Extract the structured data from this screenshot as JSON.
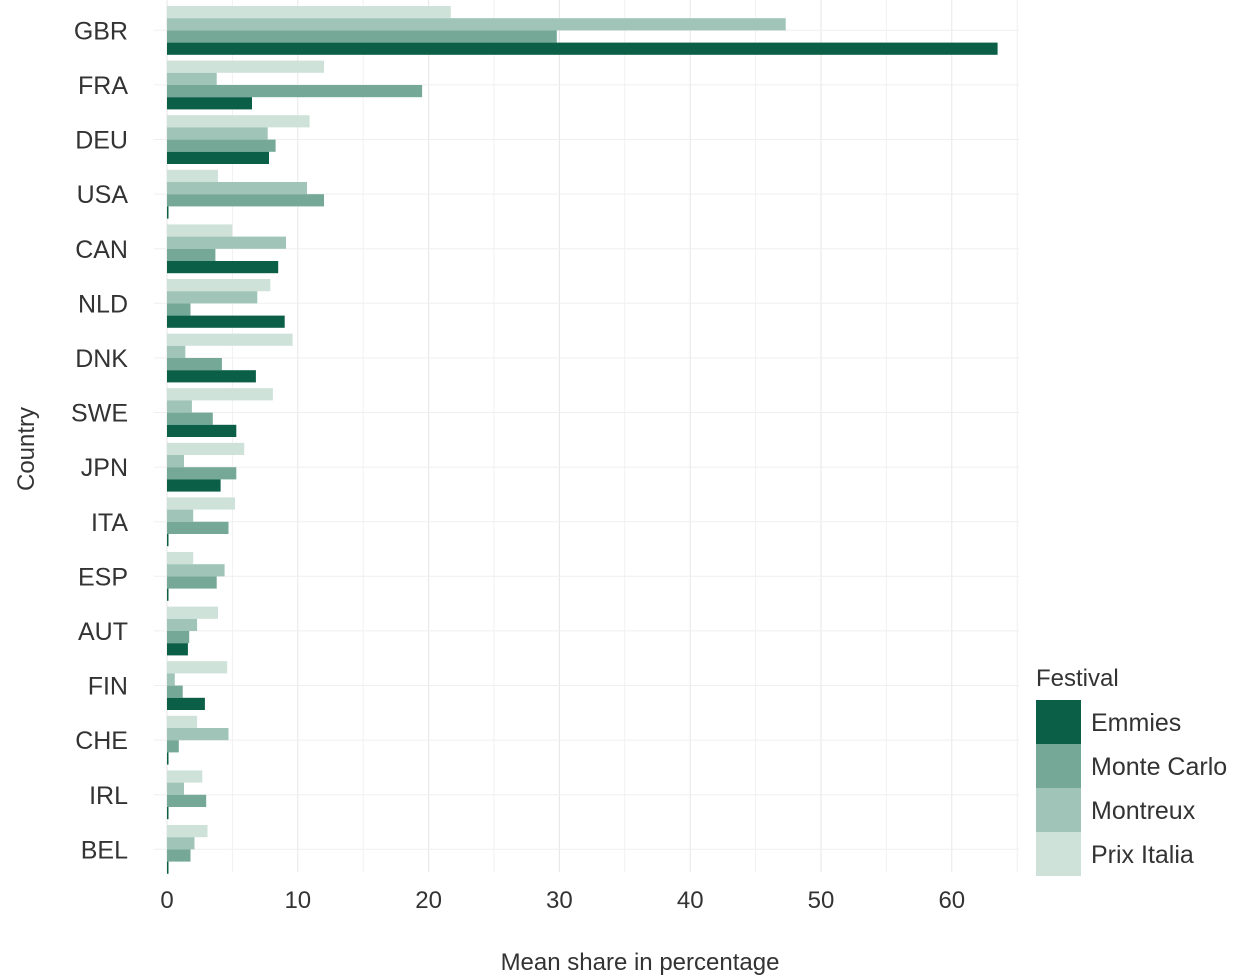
{
  "chart_data": {
    "type": "bar",
    "orientation": "horizontal",
    "title": "",
    "xlabel": "Mean share in percentage",
    "ylabel": "Country",
    "xlim": [
      0,
      65
    ],
    "x_ticks": [
      "0",
      "10",
      "20",
      "30",
      "40",
      "50",
      "60"
    ],
    "grid": true,
    "legend_position": "right-bottom",
    "legend_title": "Festival",
    "categories": [
      "GBR",
      "FRA",
      "DEU",
      "USA",
      "CAN",
      "NLD",
      "DNK",
      "SWE",
      "JPN",
      "ITA",
      "ESP",
      "AUT",
      "FIN",
      "CHE",
      "IRL",
      "BEL"
    ],
    "series": [
      {
        "name": "Prix Italia",
        "color": "#cfe2da",
        "values": [
          21.7,
          12.0,
          10.9,
          3.9,
          5.0,
          7.9,
          9.6,
          8.1,
          5.9,
          5.2,
          2.0,
          3.9,
          4.6,
          2.3,
          2.7,
          3.1
        ]
      },
      {
        "name": "Montreux",
        "color": "#a0c5b8",
        "values": [
          47.3,
          3.8,
          7.7,
          10.7,
          9.1,
          6.9,
          1.4,
          1.9,
          1.3,
          2.0,
          4.4,
          2.3,
          0.6,
          4.7,
          1.3,
          2.1
        ]
      },
      {
        "name": "Monte Carlo",
        "color": "#76a898",
        "values": [
          29.8,
          19.5,
          8.3,
          12.0,
          3.7,
          1.8,
          4.2,
          3.5,
          5.3,
          4.7,
          3.8,
          1.7,
          1.2,
          0.9,
          3.0,
          1.8
        ]
      },
      {
        "name": "Emmies",
        "color": "#0b5f47",
        "values": [
          63.5,
          6.5,
          7.8,
          0.1,
          8.5,
          9.0,
          6.8,
          5.3,
          4.1,
          0.1,
          0.1,
          1.6,
          2.9,
          0.1,
          0.1,
          0.0
        ]
      }
    ]
  }
}
